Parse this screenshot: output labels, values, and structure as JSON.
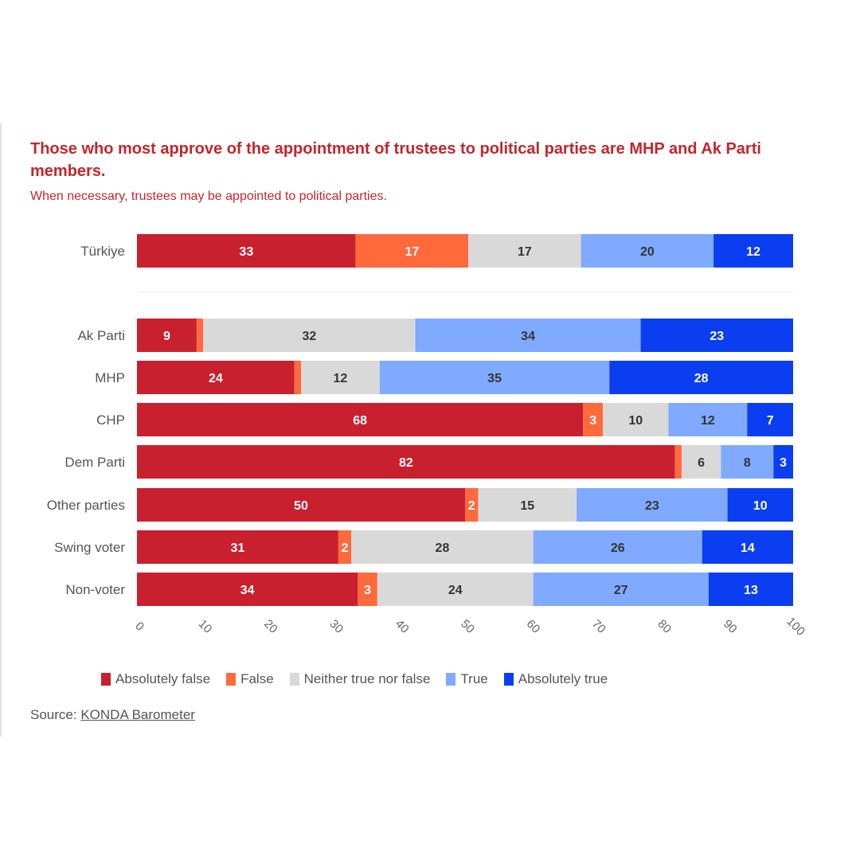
{
  "chart_data": {
    "type": "bar",
    "orientation": "horizontal",
    "stacked": true,
    "title": "Those who most approve of the appointment of trustees to political parties are MHP and Ak Parti members.",
    "subtitle": "When necessary, trustees may be appointed to political parties.",
    "categories": [
      "Türkiye",
      "Ak Parti",
      "MHP",
      "CHP",
      "Dem Parti",
      "Other parties",
      "Swing voter",
      "Non-voter"
    ],
    "series": [
      {
        "name": "Absolutely false",
        "color": "#c8202f",
        "label_color": "#ffffff",
        "values": [
          33,
          9,
          24,
          68,
          82,
          50,
          31,
          34
        ],
        "labels": [
          "33",
          "9",
          "24",
          "68",
          "82",
          "50",
          "31",
          "34"
        ]
      },
      {
        "name": "False",
        "color": "#ff6a3d",
        "label_color": "#ffffff",
        "values": [
          17,
          1,
          1,
          3,
          1,
          2,
          2,
          3
        ],
        "labels": [
          "17",
          "",
          "",
          "3",
          "",
          "2",
          "2",
          "3"
        ]
      },
      {
        "name": "Neither true nor false",
        "color": "#d9d9d9",
        "label_color": "#333333",
        "values": [
          17,
          32,
          12,
          10,
          6,
          15,
          28,
          24
        ],
        "labels": [
          "17",
          "32",
          "12",
          "10",
          "6",
          "15",
          "28",
          "24"
        ]
      },
      {
        "name": "True",
        "color": "#7faaff",
        "label_color": "#333333",
        "values": [
          20,
          34,
          35,
          12,
          8,
          23,
          26,
          27
        ],
        "labels": [
          "20",
          "34",
          "35",
          "12",
          "8",
          "23",
          "26",
          "27"
        ]
      },
      {
        "name": "Absolutely true",
        "color": "#0a3ef0",
        "label_color": "#ffffff",
        "values": [
          12,
          23,
          28,
          7,
          3,
          10,
          14,
          13
        ],
        "labels": [
          "12",
          "23",
          "28",
          "7",
          "3",
          "10",
          "14",
          "13"
        ]
      }
    ],
    "xlim": [
      0,
      100
    ],
    "xticks": [
      0,
      10,
      20,
      30,
      40,
      50,
      60,
      70,
      80,
      90,
      100
    ],
    "legend_position": "bottom"
  },
  "source": {
    "prefix": "Source:",
    "link_text": "KONDA Barometer"
  }
}
